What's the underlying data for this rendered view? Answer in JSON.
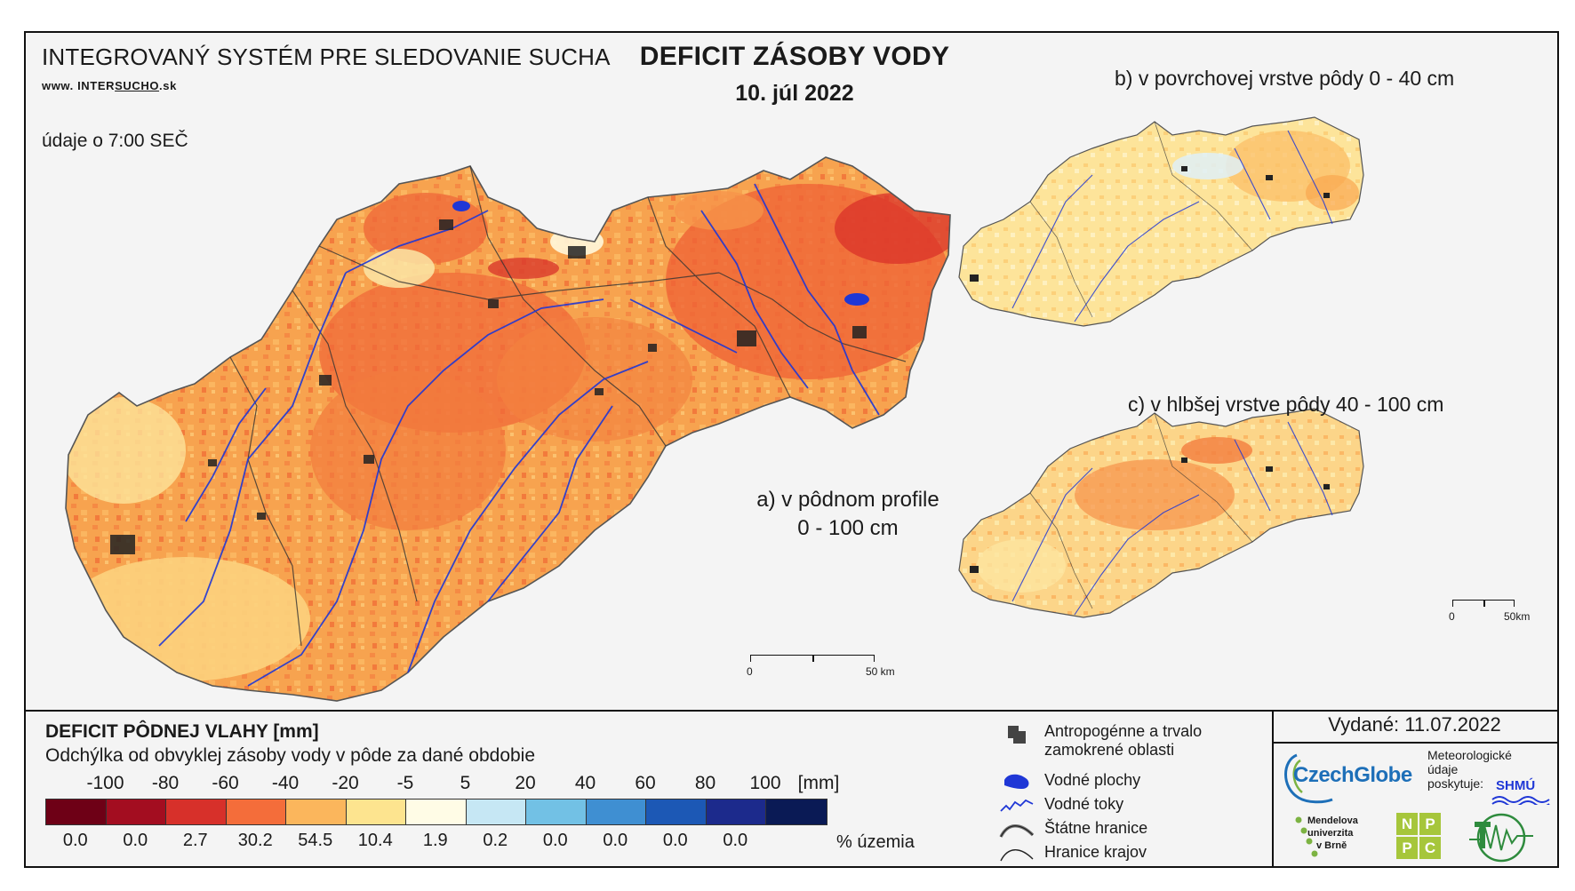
{
  "header": {
    "system_title": "INTEGROVANÝ SYSTÉM PRE SLEDOVANIE SUCHA",
    "site_prefix": "www. INTER",
    "site_mid": "SUCHO",
    "site_suffix": ".sk",
    "time_note": "údaje o 7:00 SEČ",
    "title": "DEFICIT ZÁSOBY VODY",
    "date": "10. júl 2022"
  },
  "maps": {
    "a_label_line1": "a) v pôdnom profile",
    "a_label_line2": "0 - 100 cm",
    "b_label": "b) v povrchovej vrstve pôdy 0 - 40 cm",
    "c_label": "c) v hlbšej vrstve pôdy 40 - 100 cm",
    "scale_main": {
      "start": "0",
      "end": "50 km"
    },
    "scale_small": {
      "start": "0",
      "end": "50km"
    }
  },
  "legend": {
    "title": "DEFICIT PÔDNEJ VLAHY [mm]",
    "subtitle": "Odchýlka od obvyklej zásoby vody v pôde za dané obdobie",
    "ticks": [
      "-100",
      "-80",
      "-60",
      "-40",
      "-20",
      "-5",
      "5",
      "20",
      "40",
      "60",
      "80",
      "100"
    ],
    "unit": "[mm]",
    "classes": [
      {
        "color": "#6e0016",
        "pct": "0.0"
      },
      {
        "color": "#a30d20",
        "pct": "0.0"
      },
      {
        "color": "#d7302a",
        "pct": "2.7"
      },
      {
        "color": "#f46d3a",
        "pct": "30.2"
      },
      {
        "color": "#fbb65c",
        "pct": "54.5"
      },
      {
        "color": "#fde48f",
        "pct": "10.4"
      },
      {
        "color": "#fffce6",
        "pct": "1.9"
      },
      {
        "color": "#c6e7f4",
        "pct": "0.2"
      },
      {
        "color": "#72c1e5",
        "pct": "0.0"
      },
      {
        "color": "#3f8fd2",
        "pct": "0.0"
      },
      {
        "color": "#1c58b5",
        "pct": "0.0"
      },
      {
        "color": "#1c2a8c",
        "pct": "0.0"
      },
      {
        "color": "#0a1a55",
        "pct": ""
      }
    ],
    "pct_label": "% územia",
    "symbols": {
      "urban_line1": "Antropogénne a trvalo",
      "urban_line2": "zamokrené oblasti",
      "water_bodies": "Vodné plochy",
      "streams": "Vodné toky",
      "state_border": "Štátne hranice",
      "region_border": "Hranice krajov"
    }
  },
  "footer": {
    "issued": "Vydané: 11.07.2022",
    "czechglobe": "CzechGlobe",
    "meteo_line1": "Meteorologické",
    "meteo_line2": "údaje",
    "meteo_line3": "poskytuje:",
    "shmu": "SHMÚ",
    "mendel_line1": "Mendelova",
    "mendel_line2": "univerzita",
    "mendel_line3": "v Brně",
    "nppc": [
      "N",
      "P",
      "P",
      "C"
    ]
  }
}
